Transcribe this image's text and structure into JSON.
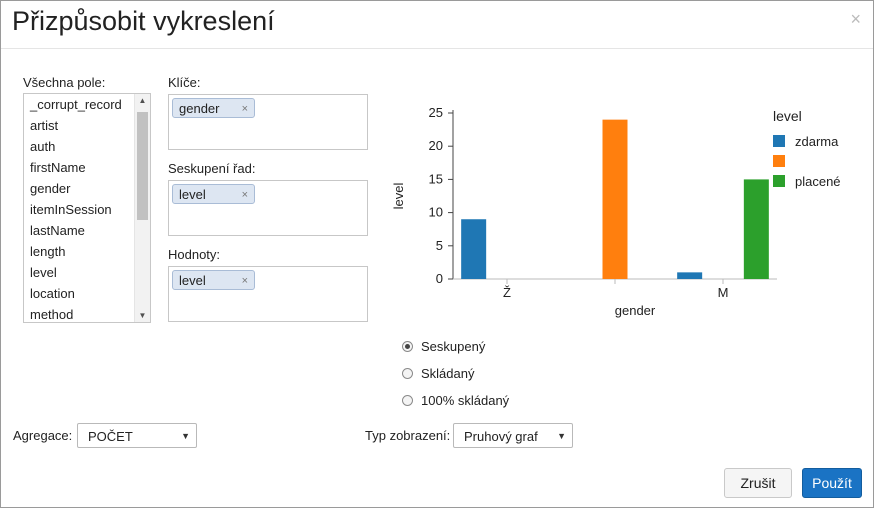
{
  "dialog": {
    "title": "Přizpůsobit vykreslení",
    "close_glyph": "×"
  },
  "fields": {
    "label": "Všechna pole:",
    "items": [
      "_corrupt_record",
      "artist",
      "auth",
      "firstName",
      "gender",
      "itemInSession",
      "lastName",
      "length",
      "level",
      "location",
      "method"
    ]
  },
  "keys": {
    "label": "Klíče:",
    "pill": "gender",
    "remove_glyph": "×"
  },
  "grouping": {
    "label": "Seskupení řad:",
    "pill": "level",
    "remove_glyph": "×"
  },
  "values": {
    "label": "Hodnoty:",
    "pill": "level",
    "remove_glyph": "×"
  },
  "chart_data": {
    "type": "bar",
    "categories": [
      "Ž",
      "",
      "M"
    ],
    "series": [
      {
        "name": "zdarma",
        "color": "#1f77b4",
        "values": [
          9,
          0,
          1
        ]
      },
      {
        "name": "",
        "color": "#ff7f0e",
        "values": [
          0,
          24,
          0
        ]
      },
      {
        "name": "placené",
        "color": "#2ca02c",
        "values": [
          0,
          0,
          15
        ]
      }
    ],
    "xlabel": "gender",
    "ylabel": "level",
    "yticks": [
      0,
      5,
      10,
      15,
      20,
      25
    ],
    "ylim": [
      0,
      25
    ],
    "legend_title": "level",
    "legend_position": "right",
    "grid": false
  },
  "mode": {
    "options": [
      {
        "label": "Seskupený",
        "selected": true
      },
      {
        "label": "Skládaný",
        "selected": false
      },
      {
        "label": "100% skládaný",
        "selected": false
      }
    ]
  },
  "aggregation": {
    "label": "Agregace:",
    "value": "POČET",
    "caret": "▼"
  },
  "display_type": {
    "label": "Typ zobrazení:",
    "value": "Pruhový graf",
    "caret": "▼"
  },
  "buttons": {
    "cancel": "Zrušit",
    "ok": "Použít"
  }
}
